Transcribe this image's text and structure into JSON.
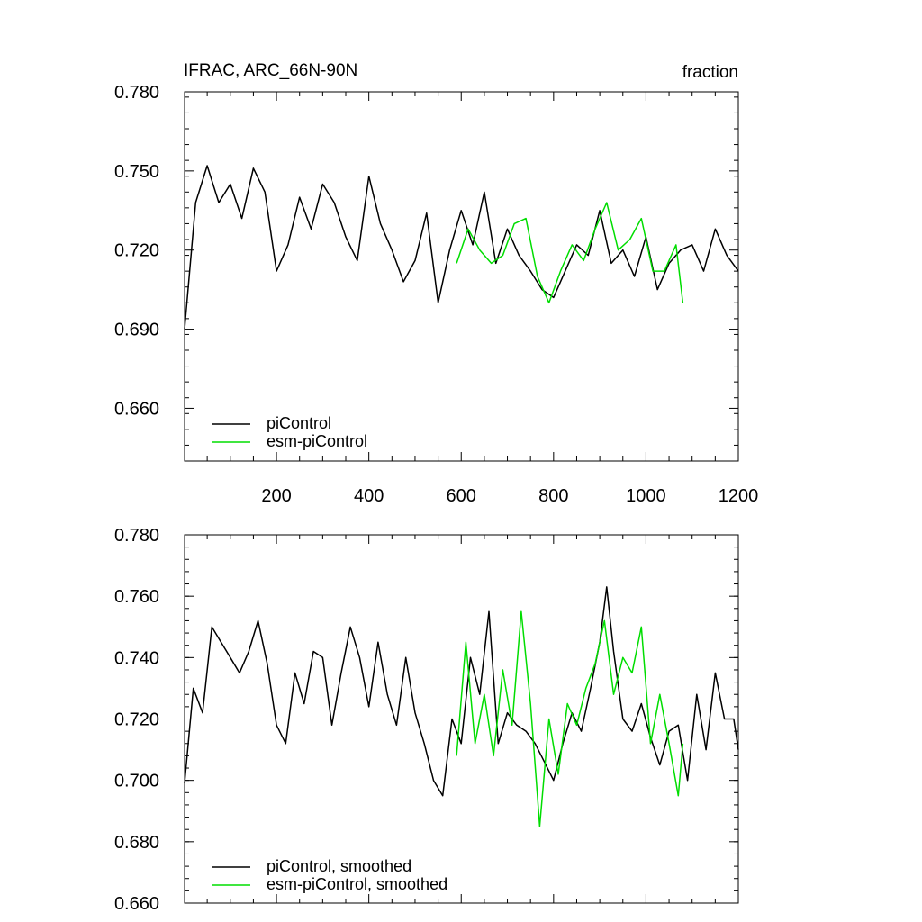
{
  "chart_data": [
    {
      "type": "line",
      "title": "IFRAC, ARC_66N-90N",
      "units": "fraction",
      "xlim": [
        1,
        1200
      ],
      "ylim": [
        0.64,
        0.78
      ],
      "x_ticks": [
        200,
        400,
        600,
        800,
        1000,
        1200
      ],
      "y_ticks": [
        "0.780",
        "0.750",
        "0.720",
        "0.690",
        "0.660"
      ],
      "y_tick_values": [
        0.78,
        0.75,
        0.72,
        0.69,
        0.66
      ],
      "legend": [
        {
          "name": "piControl",
          "color": "#000000"
        },
        {
          "name": "esm-piControl",
          "color": "#00dd00"
        }
      ],
      "legend_position": "bottom-left",
      "series": [
        {
          "name": "piControl",
          "color": "#000000",
          "x": [
            1,
            25,
            50,
            75,
            100,
            125,
            150,
            175,
            200,
            225,
            250,
            275,
            300,
            325,
            350,
            375,
            400,
            425,
            450,
            475,
            500,
            525,
            550,
            575,
            600,
            625,
            650,
            675,
            700,
            725,
            750,
            775,
            800,
            825,
            850,
            875,
            900,
            925,
            950,
            975,
            1000,
            1025,
            1050,
            1075,
            1100,
            1125,
            1150,
            1175,
            1200
          ],
          "values": [
            0.69,
            0.738,
            0.752,
            0.738,
            0.745,
            0.732,
            0.751,
            0.742,
            0.712,
            0.722,
            0.74,
            0.728,
            0.745,
            0.738,
            0.725,
            0.716,
            0.748,
            0.73,
            0.72,
            0.708,
            0.716,
            0.734,
            0.7,
            0.72,
            0.735,
            0.722,
            0.742,
            0.715,
            0.728,
            0.718,
            0.712,
            0.705,
            0.702,
            0.712,
            0.722,
            0.718,
            0.735,
            0.715,
            0.72,
            0.71,
            0.725,
            0.705,
            0.715,
            0.72,
            0.722,
            0.712,
            0.728,
            0.718,
            0.712
          ]
        },
        {
          "name": "esm-piControl",
          "color": "#00dd00",
          "x": [
            590,
            615,
            640,
            665,
            690,
            715,
            740,
            765,
            790,
            815,
            840,
            865,
            890,
            915,
            940,
            965,
            990,
            1015,
            1040,
            1065,
            1080
          ],
          "values": [
            0.715,
            0.728,
            0.72,
            0.715,
            0.718,
            0.73,
            0.732,
            0.71,
            0.7,
            0.712,
            0.722,
            0.716,
            0.728,
            0.738,
            0.72,
            0.724,
            0.732,
            0.712,
            0.712,
            0.722,
            0.7
          ]
        }
      ]
    },
    {
      "type": "line",
      "xlim": [
        1,
        1200
      ],
      "ylim": [
        0.66,
        0.78
      ],
      "y_ticks": [
        "0.780",
        "0.760",
        "0.740",
        "0.720",
        "0.700",
        "0.680",
        "0.660"
      ],
      "y_tick_values": [
        0.78,
        0.76,
        0.74,
        0.72,
        0.7,
        0.68,
        0.66
      ],
      "legend": [
        {
          "name": "piControl, smoothed",
          "color": "#000000"
        },
        {
          "name": "esm-piControl, smoothed",
          "color": "#00dd00"
        }
      ],
      "legend_position": "bottom-left",
      "series": [
        {
          "name": "piControl, smoothed",
          "color": "#000000",
          "x": [
            1,
            20,
            40,
            60,
            80,
            100,
            120,
            140,
            160,
            180,
            200,
            220,
            240,
            260,
            280,
            300,
            320,
            340,
            360,
            380,
            400,
            420,
            440,
            460,
            480,
            500,
            520,
            540,
            560,
            580,
            600,
            620,
            640,
            660,
            680,
            700,
            720,
            740,
            760,
            780,
            800,
            820,
            840,
            860,
            880,
            900,
            915,
            930,
            950,
            970,
            990,
            1010,
            1030,
            1050,
            1070,
            1090,
            1110,
            1130,
            1150,
            1170,
            1190,
            1200
          ],
          "values": [
            0.699,
            0.73,
            0.722,
            0.75,
            0.745,
            0.74,
            0.735,
            0.742,
            0.752,
            0.738,
            0.718,
            0.712,
            0.735,
            0.725,
            0.742,
            0.74,
            0.718,
            0.735,
            0.75,
            0.74,
            0.724,
            0.745,
            0.728,
            0.718,
            0.74,
            0.722,
            0.712,
            0.7,
            0.695,
            0.72,
            0.712,
            0.74,
            0.728,
            0.755,
            0.712,
            0.722,
            0.718,
            0.716,
            0.712,
            0.706,
            0.7,
            0.712,
            0.722,
            0.716,
            0.73,
            0.745,
            0.763,
            0.742,
            0.72,
            0.716,
            0.725,
            0.714,
            0.705,
            0.716,
            0.718,
            0.7,
            0.728,
            0.71,
            0.735,
            0.72,
            0.72,
            0.71
          ]
        },
        {
          "name": "esm-piControl, smoothed",
          "color": "#00dd00",
          "x": [
            590,
            610,
            630,
            650,
            670,
            690,
            710,
            730,
            750,
            770,
            790,
            810,
            830,
            850,
            870,
            890,
            910,
            930,
            950,
            970,
            990,
            1010,
            1030,
            1050,
            1070,
            1080
          ],
          "values": [
            0.708,
            0.745,
            0.712,
            0.728,
            0.708,
            0.736,
            0.718,
            0.755,
            0.725,
            0.685,
            0.72,
            0.702,
            0.725,
            0.718,
            0.73,
            0.738,
            0.752,
            0.728,
            0.74,
            0.735,
            0.75,
            0.712,
            0.728,
            0.712,
            0.695,
            0.712
          ]
        }
      ]
    }
  ]
}
